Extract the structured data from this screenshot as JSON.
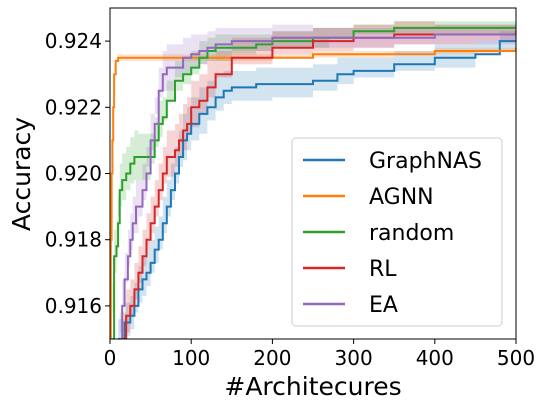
{
  "chart_data": {
    "type": "line",
    "xlabel": "#Architecures",
    "ylabel": "Accuracy",
    "xlim": [
      0,
      500
    ],
    "ylim": [
      0.915,
      0.925
    ],
    "xticks": [
      0,
      100,
      200,
      300,
      400,
      500
    ],
    "yticks": [
      0.916,
      0.918,
      0.92,
      0.922,
      0.924
    ],
    "xtick_labels": [
      "0",
      "100",
      "200",
      "300",
      "400",
      "500"
    ],
    "ytick_labels": [
      "0.916",
      "0.918",
      "0.920",
      "0.922",
      "0.924"
    ],
    "grid": false,
    "legend_position": "lower right",
    "series": [
      {
        "name": "GraphNAS",
        "color": "#1f77b4",
        "x": [
          10,
          18,
          25,
          30,
          35,
          40,
          45,
          50,
          55,
          60,
          65,
          70,
          75,
          80,
          85,
          90,
          95,
          100,
          110,
          120,
          130,
          140,
          150,
          180,
          200,
          250,
          280,
          300,
          350,
          400,
          450,
          480,
          500
        ],
        "y": [
          0.915,
          0.9155,
          0.9157,
          0.916,
          0.9165,
          0.9168,
          0.917,
          0.9173,
          0.9177,
          0.918,
          0.9185,
          0.919,
          0.9195,
          0.92,
          0.9205,
          0.921,
          0.9212,
          0.9215,
          0.9218,
          0.922,
          0.9223,
          0.9225,
          0.9226,
          0.9227,
          0.9227,
          0.9228,
          0.923,
          0.9231,
          0.9233,
          0.9235,
          0.9236,
          0.924,
          0.924
        ],
        "band": [
          0.0006,
          0.0006,
          0.0006,
          0.0007,
          0.0007,
          0.0007,
          0.0007,
          0.0007,
          0.0007,
          0.0007,
          0.0008,
          0.0008,
          0.0008,
          0.0008,
          0.0008,
          0.0008,
          0.0008,
          0.0008,
          0.0008,
          0.0008,
          0.0007,
          0.0006,
          0.0005,
          0.0005,
          0.0005,
          0.0005,
          0.0005,
          0.0004,
          0.0004,
          0.0004,
          0.0004,
          0.0003,
          0.0003
        ]
      },
      {
        "name": "AGNN",
        "color": "#ff7f0e",
        "x": [
          0,
          1,
          2,
          3,
          4,
          5,
          7,
          10,
          50,
          100,
          150,
          200,
          250,
          300,
          350,
          400,
          450,
          480,
          500
        ],
        "y": [
          0.915,
          0.918,
          0.92,
          0.921,
          0.922,
          0.923,
          0.9234,
          0.9235,
          0.9235,
          0.9235,
          0.9235,
          0.9235,
          0.9236,
          0.9236,
          0.9236,
          0.9237,
          0.9237,
          0.9237,
          0.9238
        ],
        "band": [
          0.0002,
          0.0002,
          0.0002,
          0.0002,
          0.0002,
          0.0001,
          0.0001,
          0.0001,
          0.0001,
          0.0001,
          0.0001,
          0.0001,
          0.0001,
          0.0001,
          0.0001,
          0.0001,
          0.0001,
          0.0001,
          0.0001
        ]
      },
      {
        "name": "random",
        "color": "#2ca02c",
        "x": [
          3,
          5,
          8,
          10,
          12,
          15,
          20,
          25,
          30,
          35,
          40,
          50,
          55,
          60,
          65,
          70,
          80,
          90,
          100,
          110,
          120,
          130,
          150,
          180,
          200,
          250,
          270,
          300,
          350,
          400,
          450,
          500
        ],
        "y": [
          0.915,
          0.9175,
          0.9178,
          0.9185,
          0.9195,
          0.9198,
          0.92,
          0.9203,
          0.9205,
          0.9205,
          0.9205,
          0.9205,
          0.921,
          0.9215,
          0.9217,
          0.9222,
          0.9228,
          0.923,
          0.9232,
          0.9235,
          0.9237,
          0.9238,
          0.9238,
          0.9239,
          0.924,
          0.9241,
          0.9241,
          0.9243,
          0.9244,
          0.9244,
          0.9244,
          0.9244
        ],
        "band": [
          0.0008,
          0.0008,
          0.0008,
          0.0008,
          0.0008,
          0.0008,
          0.0008,
          0.0008,
          0.0008,
          0.0007,
          0.0007,
          0.0007,
          0.0007,
          0.0007,
          0.0006,
          0.0006,
          0.0006,
          0.0005,
          0.0005,
          0.0005,
          0.0004,
          0.0004,
          0.0004,
          0.0003,
          0.0003,
          0.0003,
          0.0003,
          0.0002,
          0.0002,
          0.0002,
          0.0002,
          0.0002
        ]
      },
      {
        "name": "RL",
        "color": "#d62728",
        "x": [
          15,
          20,
          25,
          30,
          35,
          40,
          45,
          50,
          55,
          60,
          65,
          70,
          80,
          85,
          90,
          95,
          100,
          110,
          120,
          130,
          150,
          200,
          250,
          300,
          350,
          400,
          450,
          500
        ],
        "y": [
          0.915,
          0.9157,
          0.916,
          0.9165,
          0.917,
          0.9175,
          0.918,
          0.9185,
          0.919,
          0.9195,
          0.92,
          0.9205,
          0.9207,
          0.921,
          0.9213,
          0.9215,
          0.922,
          0.9222,
          0.9226,
          0.923,
          0.9235,
          0.9238,
          0.924,
          0.9241,
          0.9242,
          0.9242,
          0.9242,
          0.9243
        ],
        "band": [
          0.0008,
          0.0008,
          0.0008,
          0.0008,
          0.0008,
          0.0008,
          0.0008,
          0.0008,
          0.0008,
          0.0008,
          0.0008,
          0.0008,
          0.0008,
          0.0008,
          0.0008,
          0.0008,
          0.0008,
          0.0008,
          0.0008,
          0.0007,
          0.0006,
          0.0005,
          0.0004,
          0.0004,
          0.0004,
          0.0003,
          0.0003,
          0.0003
        ]
      },
      {
        "name": "EA",
        "color": "#9467bd",
        "x": [
          12,
          15,
          18,
          22,
          25,
          28,
          32,
          35,
          40,
          45,
          50,
          55,
          60,
          65,
          70,
          80,
          90,
          100,
          110,
          120,
          130,
          150,
          200,
          250,
          300,
          350,
          400,
          450,
          500
        ],
        "y": [
          0.915,
          0.916,
          0.9168,
          0.9175,
          0.918,
          0.9185,
          0.919,
          0.919,
          0.9195,
          0.92,
          0.921,
          0.9215,
          0.9225,
          0.923,
          0.9232,
          0.9232,
          0.9235,
          0.9236,
          0.9237,
          0.9238,
          0.9239,
          0.924,
          0.9241,
          0.9241,
          0.9241,
          0.9241,
          0.9242,
          0.9242,
          0.9242
        ],
        "band": [
          0.0008,
          0.0008,
          0.0008,
          0.0008,
          0.0008,
          0.0008,
          0.0008,
          0.0008,
          0.0008,
          0.0008,
          0.0008,
          0.0008,
          0.0007,
          0.0007,
          0.0007,
          0.0007,
          0.0006,
          0.0006,
          0.0005,
          0.0005,
          0.0005,
          0.0004,
          0.0004,
          0.0003,
          0.0003,
          0.0003,
          0.0003,
          0.0003,
          0.0003
        ]
      }
    ]
  }
}
